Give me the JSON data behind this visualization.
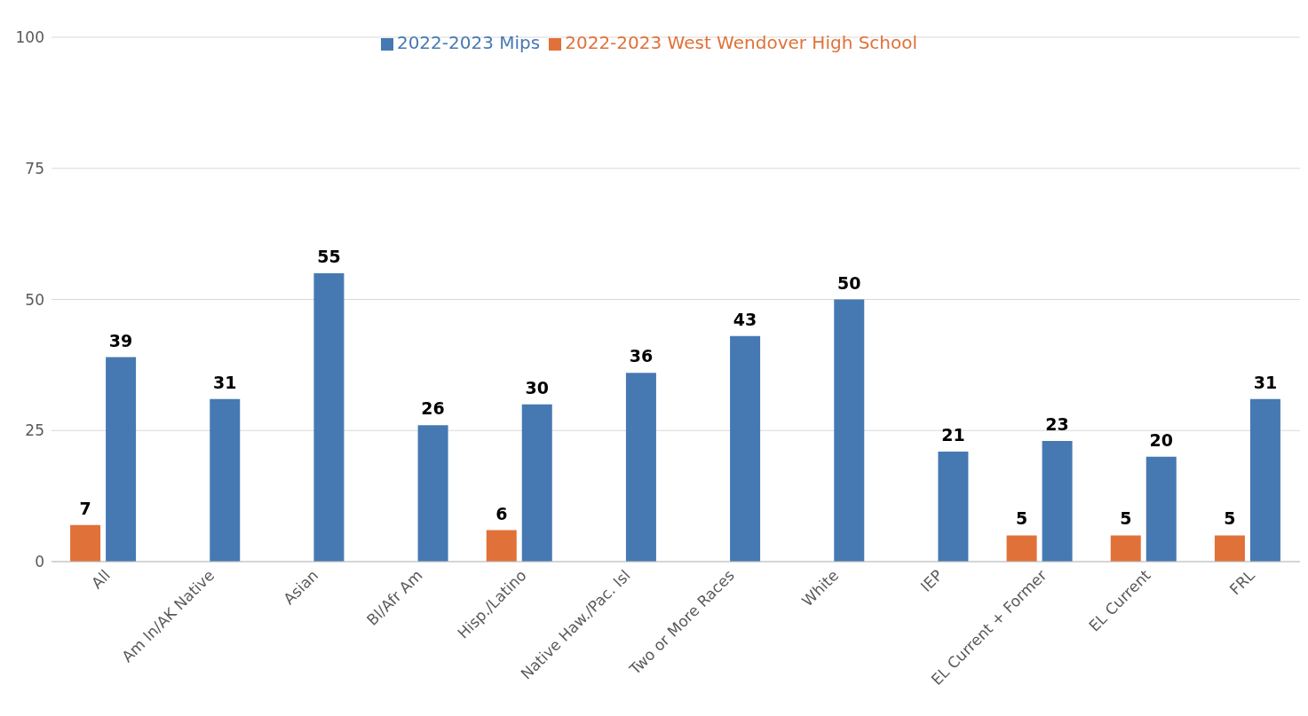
{
  "chart_data": {
    "type": "bar",
    "categories": [
      "All",
      "Am In/AK Native",
      "Asian",
      "Bl/Afr Am",
      "Hisp./Latino",
      "Native Haw./Pac. Isl",
      "Two or More Races",
      "White",
      "IEP",
      "EL Current + Former",
      "EL Current",
      "FRL"
    ],
    "series": [
      {
        "name": "2022-2023 West Wendover High School",
        "color": "#e07138",
        "values": [
          7,
          null,
          null,
          null,
          6,
          null,
          null,
          null,
          null,
          5,
          5,
          5
        ]
      },
      {
        "name": "2022-2023 Mips",
        "color": "#4679b2",
        "values": [
          39,
          31,
          55,
          26,
          30,
          36,
          43,
          50,
          21,
          23,
          20,
          31
        ]
      }
    ],
    "ylim": [
      0,
      100
    ],
    "yticks": [
      0,
      25,
      50,
      75,
      100
    ],
    "grid": "y",
    "legend": "top",
    "data_labels": true
  }
}
